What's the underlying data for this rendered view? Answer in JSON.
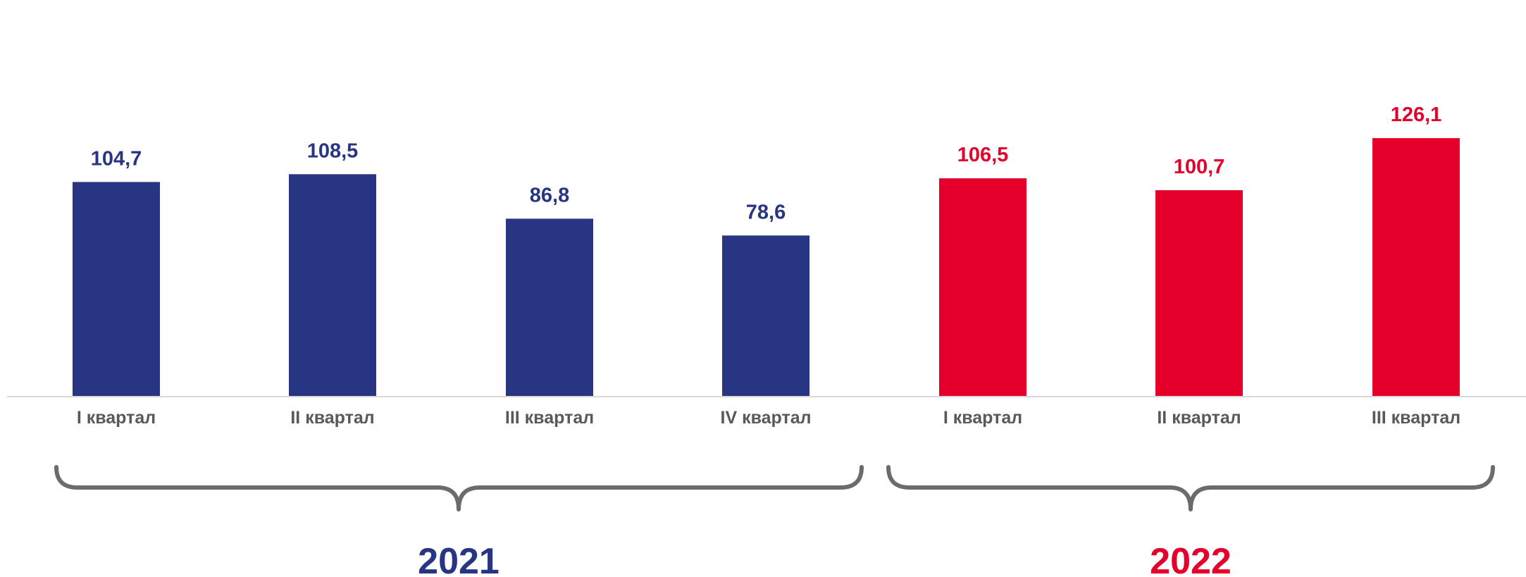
{
  "chart_data": {
    "type": "bar",
    "categories": [
      "I квартал",
      "II квартал",
      "III квартал",
      "IV квартал",
      "I квартал",
      "II квартал",
      "III квартал"
    ],
    "values": [
      104.7,
      108.5,
      86.8,
      78.6,
      106.5,
      100.7,
      126.1
    ],
    "value_labels": [
      "104,7",
      "108,5",
      "86,8",
      "78,6",
      "106,5",
      "100,7",
      "126,1"
    ],
    "bar_groups": [
      0,
      0,
      0,
      0,
      1,
      1,
      1
    ],
    "groups": [
      {
        "label": "2021",
        "color": "#283583"
      },
      {
        "label": "2022",
        "color": "#E4002B"
      }
    ],
    "ylim": [
      0,
      130
    ],
    "grid": false,
    "legend": "none",
    "title": "",
    "xlabel": "",
    "ylabel": ""
  }
}
